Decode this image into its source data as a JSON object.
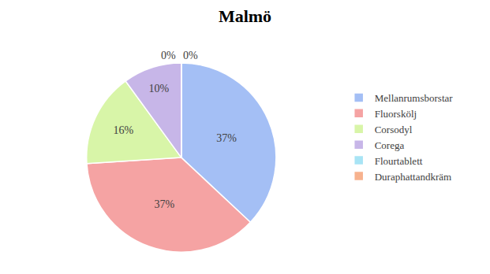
{
  "chart_data": {
    "type": "pie",
    "title": "Malmö",
    "categories": [
      "Mellanrumsborstar",
      "Fluorskölj",
      "Corsodyl",
      "Corega",
      "Flourtablett",
      "Duraphattandkräm"
    ],
    "values": [
      37,
      37,
      16,
      10,
      0,
      0
    ],
    "value_labels": [
      "37%",
      "37%",
      "16%",
      "10%",
      "0%",
      "0%"
    ],
    "colors": [
      "#a4bff5",
      "#f5a3a3",
      "#d8f5a8",
      "#c7b6e8",
      "#a8e4f5",
      "#f7b28e"
    ],
    "data_labels": true,
    "legend": "right"
  }
}
